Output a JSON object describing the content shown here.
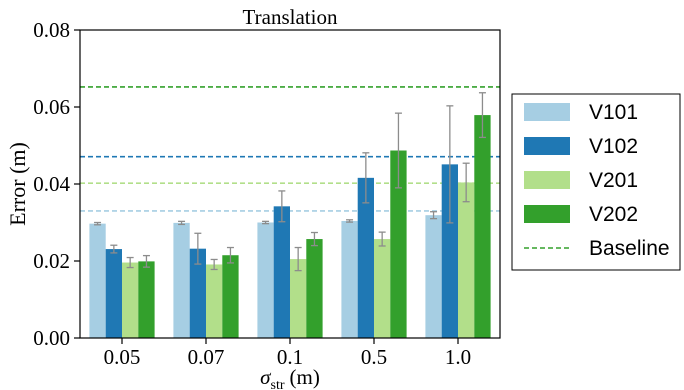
{
  "chart_data": {
    "type": "bar",
    "title": "Translation",
    "xlabel_symbol": "σ",
    "xlabel_subscript": "str",
    "xlabel_unit": "(m)",
    "ylabel": "Error (m)",
    "ylim": [
      0,
      0.08
    ],
    "yticks": [
      "0.00",
      "0.02",
      "0.04",
      "0.06",
      "0.08"
    ],
    "categories": [
      "0.05",
      "0.07",
      "0.1",
      "0.5",
      "1.0"
    ],
    "series": [
      {
        "name": "V101",
        "color": "#a6cee3",
        "values": [
          0.0297,
          0.0299,
          0.03,
          0.0304,
          0.0319
        ],
        "errors": [
          0.0003,
          0.0004,
          0.0003,
          0.0003,
          0.0009
        ]
      },
      {
        "name": "V102",
        "color": "#1f78b4",
        "values": [
          0.0231,
          0.0232,
          0.0342,
          0.0416,
          0.0451
        ],
        "errors": [
          0.001,
          0.004,
          0.004,
          0.0065,
          0.0152
        ]
      },
      {
        "name": "V201",
        "color": "#b2df8a",
        "values": [
          0.0196,
          0.0191,
          0.0205,
          0.0257,
          0.0404
        ],
        "errors": [
          0.0013,
          0.0013,
          0.003,
          0.0018,
          0.005
        ]
      },
      {
        "name": "V202",
        "color": "#33a02c",
        "values": [
          0.0199,
          0.0215,
          0.0257,
          0.0487,
          0.0579
        ],
        "errors": [
          0.0015,
          0.002,
          0.0017,
          0.0097,
          0.0058
        ]
      }
    ],
    "baselines": [
      {
        "value": 0.033,
        "color": "#a6cee3"
      },
      {
        "value": 0.0471,
        "color": "#1f78b4"
      },
      {
        "value": 0.0402,
        "color": "#b2df8a"
      },
      {
        "value": 0.0652,
        "color": "#33a02c"
      }
    ],
    "legend": {
      "position": "right",
      "entries": [
        "V101",
        "V102",
        "V201",
        "V202",
        "Baseline"
      ],
      "baseline_label": "Baseline",
      "baseline_color": "#33a02c"
    },
    "grid": false
  }
}
